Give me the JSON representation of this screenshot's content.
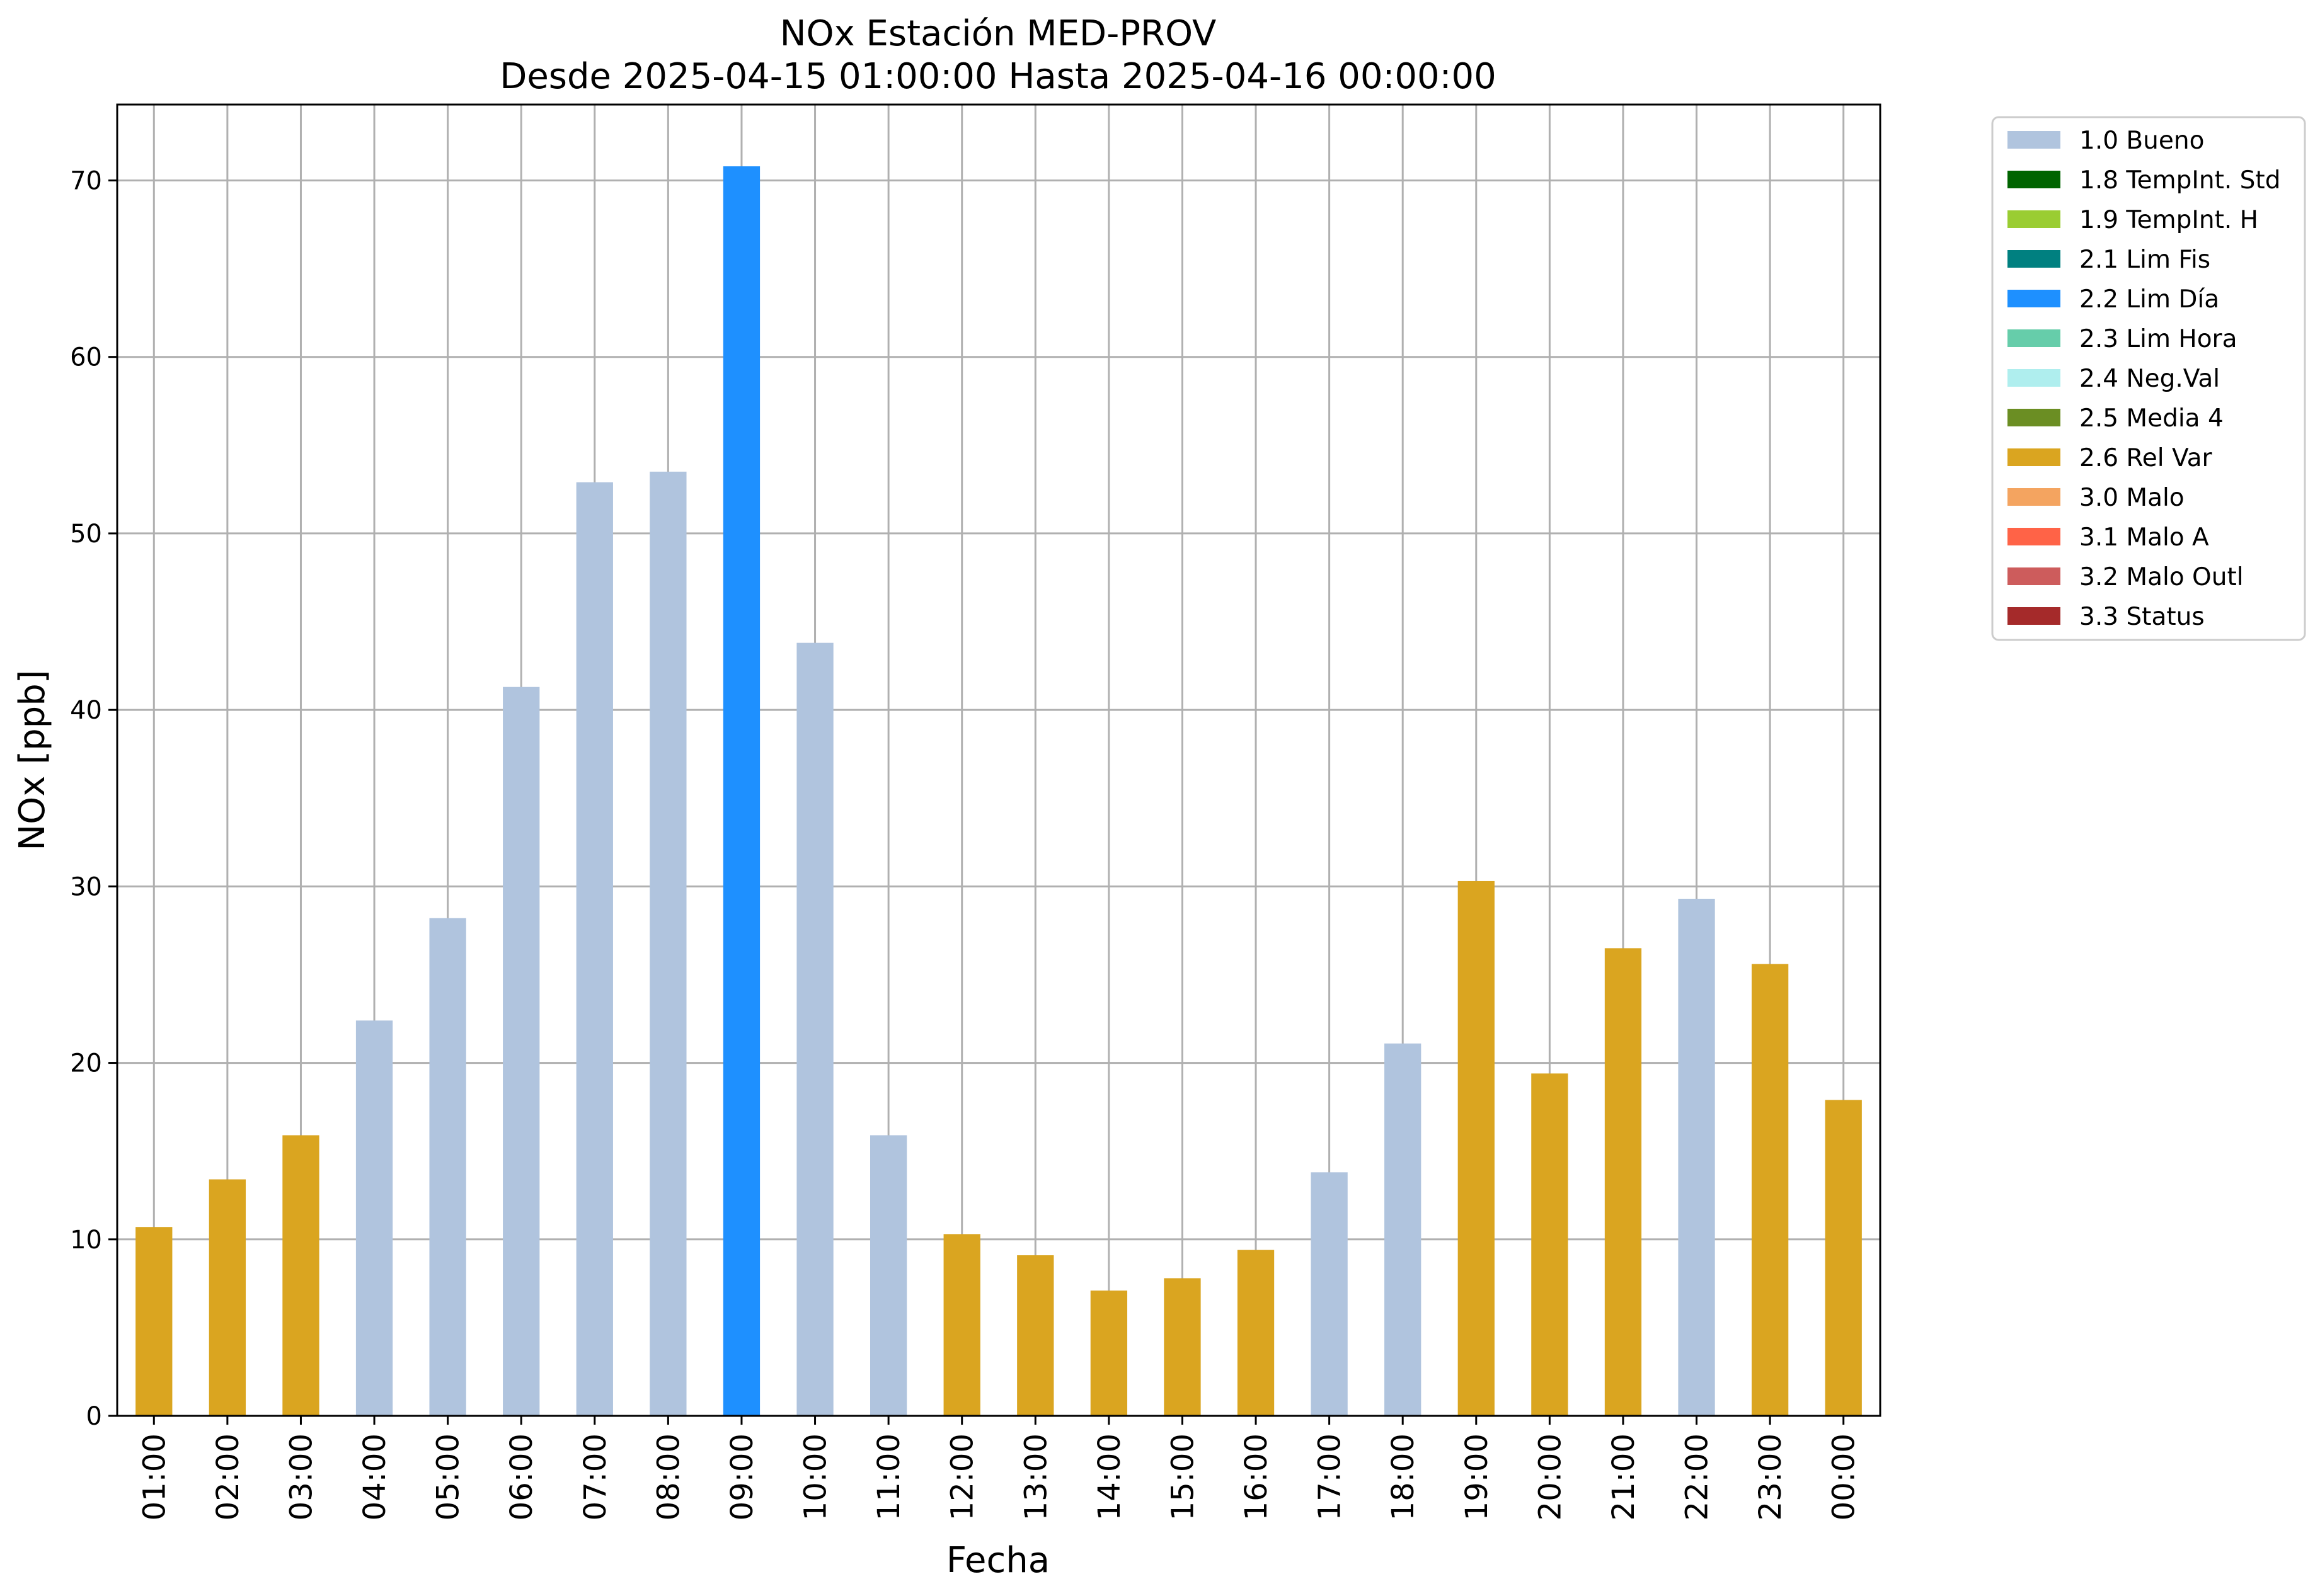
{
  "chart_data": {
    "type": "bar",
    "title": "NOx Estación MED-PROV",
    "subtitle": "Desde 2025-04-15 01:00:00 Hasta 2025-04-16 00:00:00",
    "xlabel": "Fecha",
    "ylabel": "NOx [ppb]",
    "ylim": [
      0,
      74.3
    ],
    "yticks": [
      0,
      10,
      20,
      30,
      40,
      50,
      60,
      70
    ],
    "grid": true,
    "legend_position": "outside-top-right",
    "categories": [
      "01:00",
      "02:00",
      "03:00",
      "04:00",
      "05:00",
      "06:00",
      "07:00",
      "08:00",
      "09:00",
      "10:00",
      "11:00",
      "12:00",
      "13:00",
      "14:00",
      "15:00",
      "16:00",
      "17:00",
      "18:00",
      "19:00",
      "20:00",
      "21:00",
      "22:00",
      "23:00",
      "00:00"
    ],
    "values": [
      10.7,
      13.4,
      15.9,
      22.4,
      28.2,
      41.3,
      52.9,
      53.5,
      70.8,
      43.8,
      15.9,
      10.3,
      9.1,
      7.1,
      7.8,
      9.4,
      13.8,
      21.1,
      30.3,
      19.4,
      26.5,
      29.3,
      25.6,
      17.9
    ],
    "flags": [
      "2.6 Rel Var",
      "2.6 Rel Var",
      "2.6 Rel Var",
      "1.0 Bueno",
      "1.0 Bueno",
      "1.0 Bueno",
      "1.0 Bueno",
      "1.0 Bueno",
      "2.2 Lim Día",
      "1.0 Bueno",
      "1.0 Bueno",
      "2.6 Rel Var",
      "2.6 Rel Var",
      "2.6 Rel Var",
      "2.6 Rel Var",
      "2.6 Rel Var",
      "1.0 Bueno",
      "1.0 Bueno",
      "2.6 Rel Var",
      "2.6 Rel Var",
      "2.6 Rel Var",
      "1.0 Bueno",
      "2.6 Rel Var",
      "2.6 Rel Var"
    ],
    "legend": [
      {
        "label": "1.0 Bueno",
        "color": "#b0c4de"
      },
      {
        "label": "1.8 TempInt. Std",
        "color": "#006400"
      },
      {
        "label": "1.9 TempInt. H",
        "color": "#9acd32"
      },
      {
        "label": "2.1 Lim Fis",
        "color": "#008080"
      },
      {
        "label": "2.2 Lim Día",
        "color": "#1e90ff"
      },
      {
        "label": "2.3 Lim Hora",
        "color": "#66cdaa"
      },
      {
        "label": "2.4 Neg.Val",
        "color": "#afeeee"
      },
      {
        "label": "2.5 Media 4",
        "color": "#6b8e23"
      },
      {
        "label": "2.6 Rel Var",
        "color": "#daa520"
      },
      {
        "label": "3.0 Malo",
        "color": "#f4a460"
      },
      {
        "label": "3.1 Malo A",
        "color": "#ff6347"
      },
      {
        "label": "3.2 Malo Outl",
        "color": "#cd5c5c"
      },
      {
        "label": "3.3 Status",
        "color": "#a52a2a"
      }
    ]
  }
}
